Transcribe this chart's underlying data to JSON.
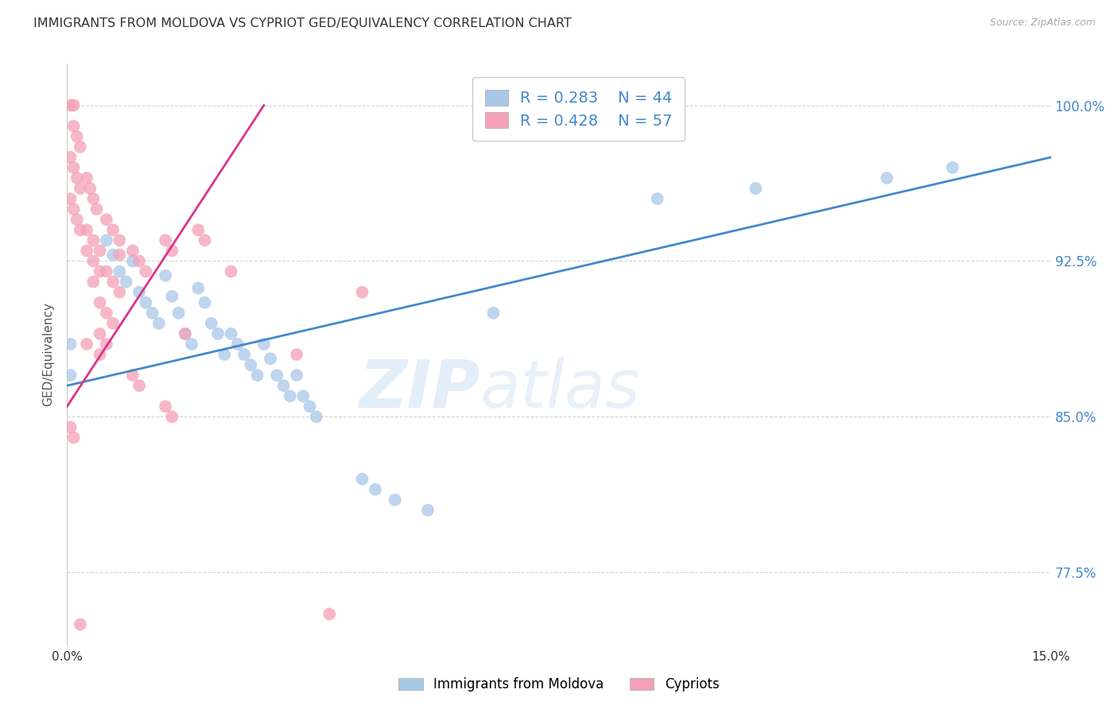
{
  "title": "IMMIGRANTS FROM MOLDOVA VS CYPRIOT GED/EQUIVALENCY CORRELATION CHART",
  "source": "Source: ZipAtlas.com",
  "ylabel": "GED/Equivalency",
  "legend_r1": "R = 0.283",
  "legend_n1": "N = 44",
  "legend_r2": "R = 0.428",
  "legend_n2": "N = 57",
  "blue_color": "#a8c8e8",
  "pink_color": "#f4a0b8",
  "blue_line_color": "#4488cc",
  "pink_line_color": "#dd3388",
  "blue_scatter": [
    [
      0.05,
      88.5
    ],
    [
      0.05,
      87.0
    ],
    [
      0.6,
      93.5
    ],
    [
      0.7,
      92.8
    ],
    [
      0.8,
      92.0
    ],
    [
      0.9,
      91.5
    ],
    [
      1.0,
      92.5
    ],
    [
      1.1,
      91.0
    ],
    [
      1.2,
      90.5
    ],
    [
      1.3,
      90.0
    ],
    [
      1.4,
      89.5
    ],
    [
      1.5,
      91.8
    ],
    [
      1.6,
      90.8
    ],
    [
      1.7,
      90.0
    ],
    [
      1.8,
      89.0
    ],
    [
      1.9,
      88.5
    ],
    [
      2.0,
      91.2
    ],
    [
      2.1,
      90.5
    ],
    [
      2.2,
      89.5
    ],
    [
      2.3,
      89.0
    ],
    [
      2.4,
      88.0
    ],
    [
      2.5,
      89.0
    ],
    [
      2.6,
      88.5
    ],
    [
      2.7,
      88.0
    ],
    [
      2.8,
      87.5
    ],
    [
      2.9,
      87.0
    ],
    [
      3.0,
      88.5
    ],
    [
      3.1,
      87.8
    ],
    [
      3.2,
      87.0
    ],
    [
      3.3,
      86.5
    ],
    [
      3.4,
      86.0
    ],
    [
      3.5,
      87.0
    ],
    [
      3.6,
      86.0
    ],
    [
      3.7,
      85.5
    ],
    [
      3.8,
      85.0
    ],
    [
      4.5,
      82.0
    ],
    [
      4.7,
      81.5
    ],
    [
      5.0,
      81.0
    ],
    [
      5.5,
      80.5
    ],
    [
      6.5,
      90.0
    ],
    [
      9.0,
      95.5
    ],
    [
      10.5,
      96.0
    ],
    [
      12.5,
      96.5
    ],
    [
      13.5,
      97.0
    ]
  ],
  "pink_scatter": [
    [
      0.05,
      100.0
    ],
    [
      0.1,
      100.0
    ],
    [
      0.1,
      99.0
    ],
    [
      0.15,
      98.5
    ],
    [
      0.2,
      98.0
    ],
    [
      0.05,
      97.5
    ],
    [
      0.1,
      97.0
    ],
    [
      0.15,
      96.5
    ],
    [
      0.2,
      96.0
    ],
    [
      0.05,
      95.5
    ],
    [
      0.1,
      95.0
    ],
    [
      0.15,
      94.5
    ],
    [
      0.2,
      94.0
    ],
    [
      0.3,
      96.5
    ],
    [
      0.35,
      96.0
    ],
    [
      0.4,
      95.5
    ],
    [
      0.45,
      95.0
    ],
    [
      0.3,
      94.0
    ],
    [
      0.4,
      93.5
    ],
    [
      0.5,
      93.0
    ],
    [
      0.3,
      93.0
    ],
    [
      0.4,
      92.5
    ],
    [
      0.5,
      92.0
    ],
    [
      0.6,
      94.5
    ],
    [
      0.7,
      94.0
    ],
    [
      0.8,
      93.5
    ],
    [
      0.6,
      92.0
    ],
    [
      0.7,
      91.5
    ],
    [
      0.8,
      91.0
    ],
    [
      0.5,
      90.5
    ],
    [
      0.6,
      90.0
    ],
    [
      0.7,
      89.5
    ],
    [
      1.0,
      93.0
    ],
    [
      1.1,
      92.5
    ],
    [
      1.2,
      92.0
    ],
    [
      1.5,
      93.5
    ],
    [
      1.6,
      93.0
    ],
    [
      2.0,
      94.0
    ],
    [
      2.1,
      93.5
    ],
    [
      2.5,
      92.0
    ],
    [
      0.5,
      89.0
    ],
    [
      0.6,
      88.5
    ],
    [
      1.0,
      87.0
    ],
    [
      1.1,
      86.5
    ],
    [
      1.5,
      85.5
    ],
    [
      1.6,
      85.0
    ],
    [
      0.05,
      84.5
    ],
    [
      0.1,
      84.0
    ],
    [
      3.5,
      88.0
    ],
    [
      4.5,
      91.0
    ],
    [
      0.2,
      75.0
    ],
    [
      4.0,
      75.5
    ],
    [
      0.5,
      88.0
    ],
    [
      1.8,
      89.0
    ],
    [
      0.3,
      88.5
    ],
    [
      0.8,
      92.8
    ],
    [
      0.4,
      91.5
    ]
  ],
  "blue_trend": [
    0.0,
    86.5,
    15.0,
    97.5
  ],
  "pink_trend": [
    0.0,
    85.5,
    3.0,
    100.0
  ],
  "xlim": [
    0.0,
    15.0
  ],
  "ylim": [
    74.0,
    102.0
  ],
  "ytick_vals": [
    77.5,
    85.0,
    92.5,
    100.0
  ],
  "ytick_labels": [
    "77.5%",
    "85.0%",
    "92.5%",
    "100.0%"
  ],
  "grid_color": "#cccccc",
  "background_color": "#ffffff",
  "watermark_zip": "ZIP",
  "watermark_atlas": "atlas",
  "title_fontsize": 11.5,
  "source_fontsize": 9
}
